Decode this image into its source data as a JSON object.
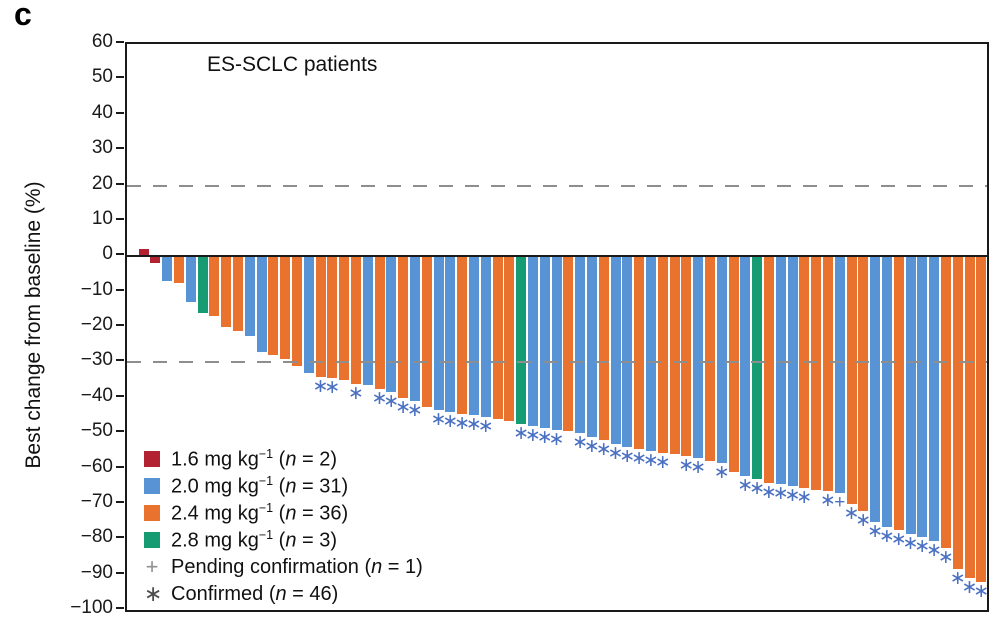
{
  "panel_label": "c",
  "colors": {
    "1.6": "#b22230",
    "2.0": "#5793d5",
    "2.4": "#e8722e",
    "2.8": "#169b73",
    "marker": "#4a70c2",
    "legend_pending": "#909090",
    "legend_confirmed": "#4d4d4d",
    "reference_line": "#8e8e8e",
    "axis": "#1a1a1a"
  },
  "y_axis": {
    "tick_values": [
      60,
      50,
      40,
      30,
      20,
      10,
      0,
      -10,
      -20,
      -30,
      -40,
      -50,
      -60,
      -70,
      -80,
      -90,
      -100
    ],
    "tick_labels": [
      "60",
      "50",
      "40",
      "30",
      "20",
      "10",
      "0",
      "−10",
      "−20",
      "−30",
      "−40",
      "−50",
      "−60",
      "−70",
      "−80",
      "−90",
      "−100"
    ]
  },
  "legend": {
    "items": [
      {
        "kind": "swatch",
        "dose": "1.6",
        "t1": "1.6 mg kg",
        "sup": "−1",
        "t2": " (",
        "n": "n",
        "t3": " = 2)"
      },
      {
        "kind": "swatch",
        "dose": "2.0",
        "t1": "2.0 mg kg",
        "sup": "−1",
        "t2": " (",
        "n": "n",
        "t3": " = 31)"
      },
      {
        "kind": "swatch",
        "dose": "2.4",
        "t1": "2.4 mg kg",
        "sup": "−1",
        "t2": " (",
        "n": "n",
        "t3": " = 36)"
      },
      {
        "kind": "swatch",
        "dose": "2.8",
        "t1": "2.8 mg kg",
        "sup": "−1",
        "t2": " (",
        "n": "n",
        "t3": " = 3)"
      },
      {
        "kind": "marker",
        "glyph": "+",
        "glyph_name": "pending-plus-icon",
        "t1": "Pending confirmation (",
        "n": "n",
        "t3": " = 1)"
      },
      {
        "kind": "marker",
        "glyph": "∗",
        "glyph_name": "confirmed-asterisk-icon",
        "t1": "Confirmed (",
        "n": "n",
        "t3": " = 46)"
      }
    ]
  },
  "chart_data": {
    "type": "bar",
    "title": "ES-SCLC patients",
    "ylabel": "Best change from baseline (%)",
    "ylim": [
      -100,
      60
    ],
    "grid": false,
    "legend_position": "inside lower-left",
    "reference_lines": [
      20,
      -30
    ],
    "marker_legend": {
      "c": "Confirmed response",
      "p": "Pending confirmation"
    },
    "bars": [
      {
        "v": 2,
        "d": "1.6",
        "m": ""
      },
      {
        "v": -2,
        "d": "1.6",
        "m": ""
      },
      {
        "v": -7,
        "d": "2.0",
        "m": ""
      },
      {
        "v": -7.5,
        "d": "2.4",
        "m": ""
      },
      {
        "v": -13,
        "d": "2.0",
        "m": ""
      },
      {
        "v": -16,
        "d": "2.8",
        "m": ""
      },
      {
        "v": -17,
        "d": "2.4",
        "m": ""
      },
      {
        "v": -20,
        "d": "2.4",
        "m": ""
      },
      {
        "v": -21,
        "d": "2.4",
        "m": ""
      },
      {
        "v": -22.5,
        "d": "2.0",
        "m": ""
      },
      {
        "v": -27,
        "d": "2.0",
        "m": ""
      },
      {
        "v": -28,
        "d": "2.4",
        "m": ""
      },
      {
        "v": -29,
        "d": "2.4",
        "m": ""
      },
      {
        "v": -31,
        "d": "2.4",
        "m": ""
      },
      {
        "v": -33,
        "d": "2.0",
        "m": ""
      },
      {
        "v": -34,
        "d": "2.4",
        "m": "c"
      },
      {
        "v": -34.5,
        "d": "2.4",
        "m": "c"
      },
      {
        "v": -35,
        "d": "2.4",
        "m": ""
      },
      {
        "v": -36,
        "d": "2.4",
        "m": "c"
      },
      {
        "v": -36.5,
        "d": "2.0",
        "m": ""
      },
      {
        "v": -37.5,
        "d": "2.4",
        "m": "c"
      },
      {
        "v": -38.5,
        "d": "2.0",
        "m": "c"
      },
      {
        "v": -40,
        "d": "2.4",
        "m": "c"
      },
      {
        "v": -41,
        "d": "2.0",
        "m": "c"
      },
      {
        "v": -42.5,
        "d": "2.4",
        "m": ""
      },
      {
        "v": -43.5,
        "d": "2.0",
        "m": "c"
      },
      {
        "v": -44,
        "d": "2.0",
        "m": "c"
      },
      {
        "v": -44.5,
        "d": "2.4",
        "m": "c"
      },
      {
        "v": -45,
        "d": "2.0",
        "m": "c"
      },
      {
        "v": -45.5,
        "d": "2.0",
        "m": "c"
      },
      {
        "v": -46,
        "d": "2.4",
        "m": ""
      },
      {
        "v": -46.5,
        "d": "2.4",
        "m": ""
      },
      {
        "v": -47.5,
        "d": "2.8",
        "m": "c"
      },
      {
        "v": -48,
        "d": "2.0",
        "m": "c"
      },
      {
        "v": -48.5,
        "d": "2.0",
        "m": "c"
      },
      {
        "v": -49,
        "d": "2.0",
        "m": "c"
      },
      {
        "v": -49.5,
        "d": "2.4",
        "m": ""
      },
      {
        "v": -50,
        "d": "2.0",
        "m": "c"
      },
      {
        "v": -51,
        "d": "2.0",
        "m": "c"
      },
      {
        "v": -52,
        "d": "2.4",
        "m": "c"
      },
      {
        "v": -53,
        "d": "2.0",
        "m": "c"
      },
      {
        "v": -54,
        "d": "2.0",
        "m": "c"
      },
      {
        "v": -54.5,
        "d": "2.4",
        "m": "c"
      },
      {
        "v": -55,
        "d": "2.0",
        "m": "c"
      },
      {
        "v": -55.5,
        "d": "2.4",
        "m": "c"
      },
      {
        "v": -56,
        "d": "2.4",
        "m": ""
      },
      {
        "v": -56.5,
        "d": "2.4",
        "m": "c"
      },
      {
        "v": -57,
        "d": "2.0",
        "m": "c"
      },
      {
        "v": -58,
        "d": "2.4",
        "m": ""
      },
      {
        "v": -58.5,
        "d": "2.0",
        "m": "c"
      },
      {
        "v": -61,
        "d": "2.4",
        "m": ""
      },
      {
        "v": -62,
        "d": "2.0",
        "m": "c"
      },
      {
        "v": -63,
        "d": "2.8",
        "m": "c"
      },
      {
        "v": -64,
        "d": "2.4",
        "m": "c"
      },
      {
        "v": -64.5,
        "d": "2.0",
        "m": "c"
      },
      {
        "v": -65,
        "d": "2.0",
        "m": "c"
      },
      {
        "v": -65.5,
        "d": "2.4",
        "m": "c"
      },
      {
        "v": -66,
        "d": "2.4",
        "m": ""
      },
      {
        "v": -66.5,
        "d": "2.4",
        "m": "c"
      },
      {
        "v": -67,
        "d": "2.0",
        "m": "p"
      },
      {
        "v": -70,
        "d": "2.4",
        "m": "c"
      },
      {
        "v": -72,
        "d": "2.4",
        "m": "c"
      },
      {
        "v": -75,
        "d": "2.0",
        "m": "c"
      },
      {
        "v": -76.5,
        "d": "2.0",
        "m": "c"
      },
      {
        "v": -77.5,
        "d": "2.4",
        "m": "c"
      },
      {
        "v": -78.5,
        "d": "2.0",
        "m": "c"
      },
      {
        "v": -79.5,
        "d": "2.0",
        "m": "c"
      },
      {
        "v": -80.5,
        "d": "2.0",
        "m": "c"
      },
      {
        "v": -82.5,
        "d": "2.4",
        "m": "c"
      },
      {
        "v": -88.5,
        "d": "2.4",
        "m": "c"
      },
      {
        "v": -91,
        "d": "2.4",
        "m": "c"
      },
      {
        "v": -92,
        "d": "2.4",
        "m": "c"
      }
    ]
  }
}
